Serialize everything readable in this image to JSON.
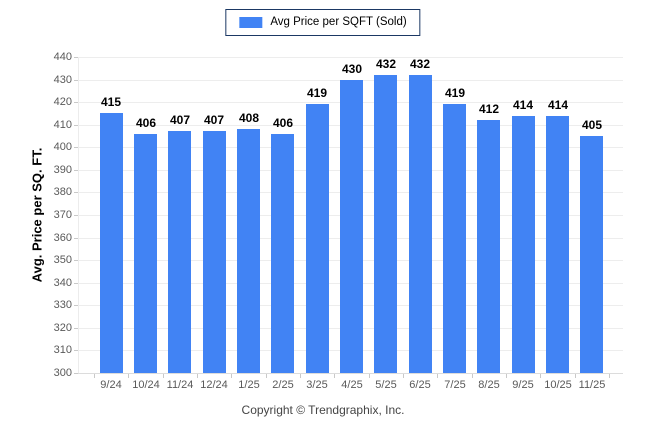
{
  "legend": {
    "label": "Avg Price per SQFT (Sold)"
  },
  "footer": {
    "copyright": "Copyright © Trendgraphix, Inc."
  },
  "colors": {
    "bar": "#4183f4",
    "grid": "#ededed",
    "axis": "#dcdcdc",
    "tick": "#c9c9c9",
    "tick_label": "#595959",
    "value_label": "#000000",
    "legend_border": "#1b3864"
  },
  "chart_data": {
    "type": "bar",
    "title": "Avg Price per SQFT (Sold)",
    "categories": [
      "9/24",
      "10/24",
      "11/24",
      "12/24",
      "1/25",
      "2/25",
      "3/25",
      "4/25",
      "5/25",
      "6/25",
      "7/25",
      "8/25",
      "9/25",
      "10/25",
      "11/25"
    ],
    "values": [
      415,
      406,
      407,
      407,
      408,
      406,
      419,
      430,
      432,
      432,
      419,
      412,
      414,
      414,
      405
    ],
    "xlabel": "",
    "ylabel": "Avg. Price per SQ. FT.",
    "ylim": [
      300,
      440
    ],
    "ytick_step": 10,
    "grid": true,
    "legend_position": "top-center",
    "bar_value_labels": true
  }
}
